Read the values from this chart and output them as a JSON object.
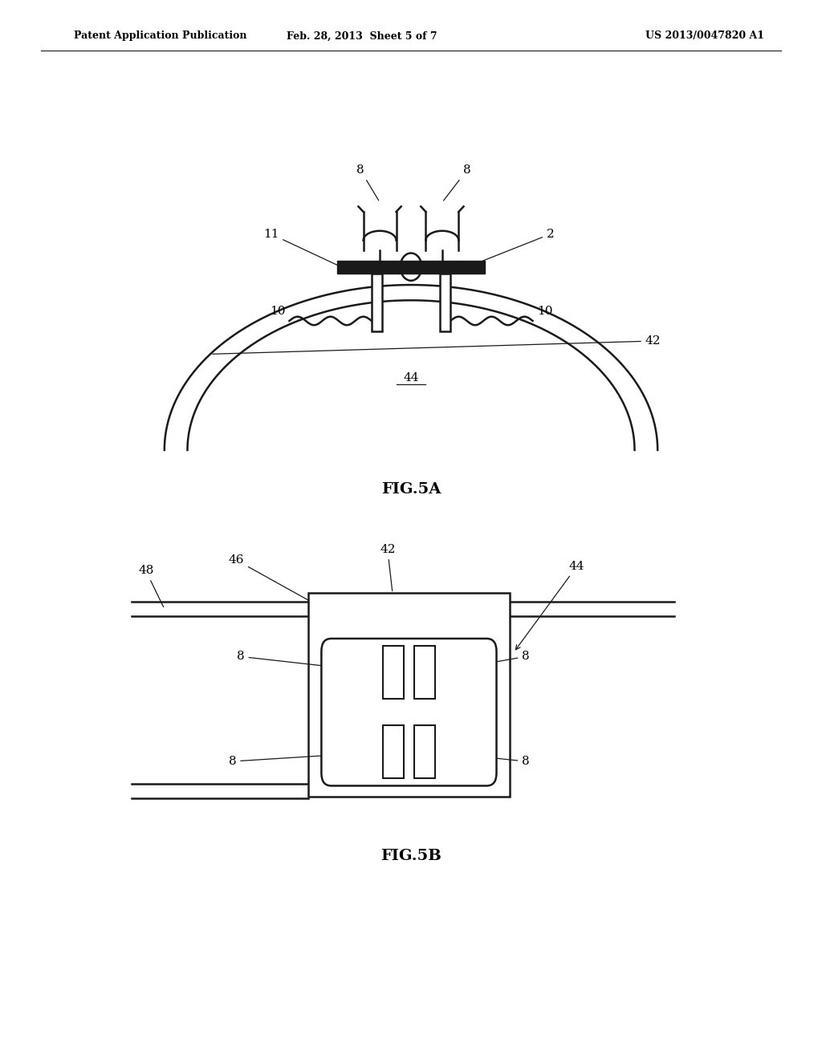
{
  "bg_color": "#ffffff",
  "line_color": "#1a1a1a",
  "header_left": "Patent Application Publication",
  "header_mid": "Feb. 28, 2013  Sheet 5 of 7",
  "header_right": "US 2013/0047820 A1",
  "fig5a_label": "FIG.5A",
  "fig5b_label": "FIG.5B"
}
